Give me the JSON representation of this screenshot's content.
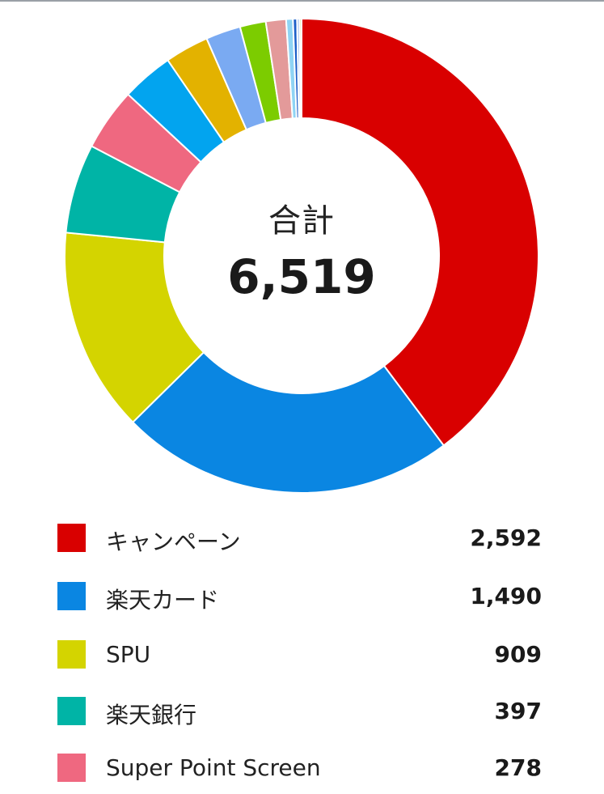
{
  "chart_data": {
    "type": "pie",
    "style": "donut",
    "center": {
      "label": "合計",
      "value": "6,519"
    },
    "total": 6519,
    "slices": [
      {
        "label": "キャンペーン",
        "value": 2592,
        "display": "2,592",
        "color": "#d90000"
      },
      {
        "label": "楽天カード",
        "value": 1490,
        "display": "1,490",
        "color": "#0a86e2"
      },
      {
        "label": "SPU",
        "value": 909,
        "display": "909",
        "color": "#d4d400"
      },
      {
        "label": "楽天銀行",
        "value": 397,
        "display": "397",
        "color": "#00b4a6"
      },
      {
        "label": "Super Point Screen",
        "value": 278,
        "display": "278",
        "color": "#ef6880"
      },
      {
        "label": "",
        "value": 230,
        "color": "#02a4ef"
      },
      {
        "label": "",
        "value": 195,
        "color": "#e3b200"
      },
      {
        "label": "",
        "value": 155,
        "color": "#7aaaf2"
      },
      {
        "label": "",
        "value": 115,
        "color": "#7ccc00"
      },
      {
        "label": "",
        "value": 90,
        "color": "#e39a9a"
      },
      {
        "label": "",
        "value": 30,
        "color": "#8fd4f4"
      },
      {
        "label": "",
        "value": 18,
        "color": "#1d5fc8"
      },
      {
        "label": "",
        "value": 12,
        "color": "#a9c6f0"
      },
      {
        "label": "",
        "value": 8,
        "color": "#b4c400"
      }
    ],
    "legend_position": "bottom"
  }
}
